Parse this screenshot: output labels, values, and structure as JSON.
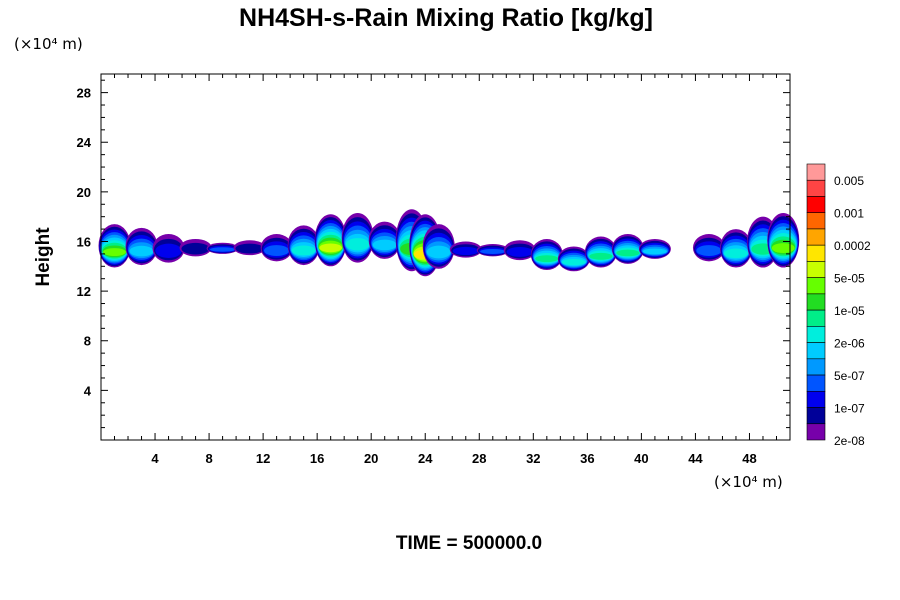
{
  "chart_data": {
    "type": "heatmap",
    "title": "NH4SH-s-Rain Mixing Ratio [kg/kg]",
    "xlabel": "",
    "ylabel": "Height",
    "x_unit": "(×10⁴ m)",
    "y_unit": "(×10⁴ m)",
    "xlim": [
      0,
      51
    ],
    "ylim": [
      0,
      29.5
    ],
    "x_ticks": [
      4,
      8,
      12,
      16,
      20,
      24,
      28,
      32,
      36,
      40,
      44,
      48
    ],
    "y_ticks": [
      4,
      8,
      12,
      16,
      20,
      24,
      28
    ],
    "footer": "TIME = 500000.0",
    "colorbar": {
      "labels": [
        "0.005",
        "0.001",
        "0.0002",
        "5e-05",
        "1e-05",
        "2e-06",
        "5e-07",
        "1e-07",
        "2e-08"
      ],
      "colors": [
        "#ff9999",
        "#ff4444",
        "#ff0000",
        "#ff6600",
        "#ffa500",
        "#ffe600",
        "#c8ff00",
        "#66ff00",
        "#22dd22",
        "#00ee88",
        "#00eedd",
        "#00ccff",
        "#0099ff",
        "#0055ff",
        "#0000ee",
        "#000099",
        "#7700aa"
      ]
    },
    "layer_cells": [
      {
        "x": 1,
        "z0": 13.9,
        "z1": 17.4,
        "level": 9
      },
      {
        "x": 3,
        "z0": 14.1,
        "z1": 17.1,
        "level": 5
      },
      {
        "x": 5,
        "z0": 14.3,
        "z1": 16.6,
        "level": 2
      },
      {
        "x": 7,
        "z0": 14.8,
        "z1": 16.2,
        "level": 1
      },
      {
        "x": 9,
        "z0": 15.0,
        "z1": 15.9,
        "level": 3
      },
      {
        "x": 11,
        "z0": 14.9,
        "z1": 16.1,
        "level": 1
      },
      {
        "x": 13,
        "z0": 14.4,
        "z1": 16.6,
        "level": 3
      },
      {
        "x": 15,
        "z0": 14.1,
        "z1": 17.3,
        "level": 6
      },
      {
        "x": 17,
        "z0": 14.0,
        "z1": 18.2,
        "level": 10
      },
      {
        "x": 19,
        "z0": 14.3,
        "z1": 18.3,
        "level": 6
      },
      {
        "x": 21,
        "z0": 14.6,
        "z1": 17.6,
        "level": 5
      },
      {
        "x": 23,
        "z0": 13.6,
        "z1": 18.6,
        "level": 8
      },
      {
        "x": 24,
        "z0": 13.2,
        "z1": 18.2,
        "level": 11
      },
      {
        "x": 25,
        "z0": 13.8,
        "z1": 17.4,
        "level": 5
      },
      {
        "x": 27,
        "z0": 14.7,
        "z1": 16.0,
        "level": 2
      },
      {
        "x": 29,
        "z0": 14.8,
        "z1": 15.8,
        "level": 3
      },
      {
        "x": 31,
        "z0": 14.5,
        "z1": 16.1,
        "level": 2
      },
      {
        "x": 33,
        "z0": 13.7,
        "z1": 16.2,
        "level": 7
      },
      {
        "x": 35,
        "z0": 13.6,
        "z1": 15.6,
        "level": 6
      },
      {
        "x": 37,
        "z0": 13.9,
        "z1": 16.4,
        "level": 7
      },
      {
        "x": 39,
        "z0": 14.2,
        "z1": 16.6,
        "level": 7
      },
      {
        "x": 41,
        "z0": 14.6,
        "z1": 16.2,
        "level": 5
      },
      {
        "x": 45,
        "z0": 14.4,
        "z1": 16.6,
        "level": 3
      },
      {
        "x": 47,
        "z0": 13.9,
        "z1": 17.0,
        "level": 6
      },
      {
        "x": 49,
        "z0": 13.9,
        "z1": 18.0,
        "level": 7
      },
      {
        "x": 50.5,
        "z0": 13.9,
        "z1": 18.3,
        "level": 9
      }
    ]
  }
}
